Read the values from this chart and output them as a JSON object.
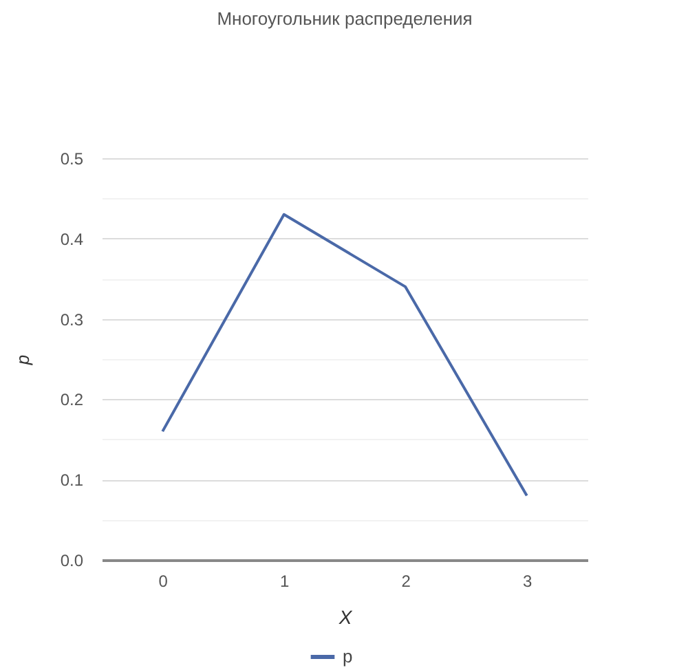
{
  "chart_data": {
    "type": "line",
    "title": "Многоугольник распределения",
    "xlabel": "X",
    "ylabel": "p",
    "categories": [
      "0",
      "1",
      "2",
      "3"
    ],
    "series": [
      {
        "name": "p",
        "color": "#4a69a8",
        "values": [
          0.16,
          0.43,
          0.34,
          0.08
        ]
      }
    ],
    "ylim": [
      0,
      0.5
    ],
    "yticks": [
      {
        "value": 0,
        "label": "0.0"
      },
      {
        "value": 0.05,
        "label": null
      },
      {
        "value": 0.1,
        "label": "0.1"
      },
      {
        "value": 0.15,
        "label": null
      },
      {
        "value": 0.2,
        "label": "0.2"
      },
      {
        "value": 0.25,
        "label": null
      },
      {
        "value": 0.3,
        "label": "0.3"
      },
      {
        "value": 0.35,
        "label": null
      },
      {
        "value": 0.4,
        "label": "0.4"
      },
      {
        "value": 0.45,
        "label": null
      },
      {
        "value": 0.5,
        "label": "0.5"
      }
    ],
    "grid": "y",
    "legend": "bottom",
    "marker": "none",
    "line_style": "solid"
  }
}
